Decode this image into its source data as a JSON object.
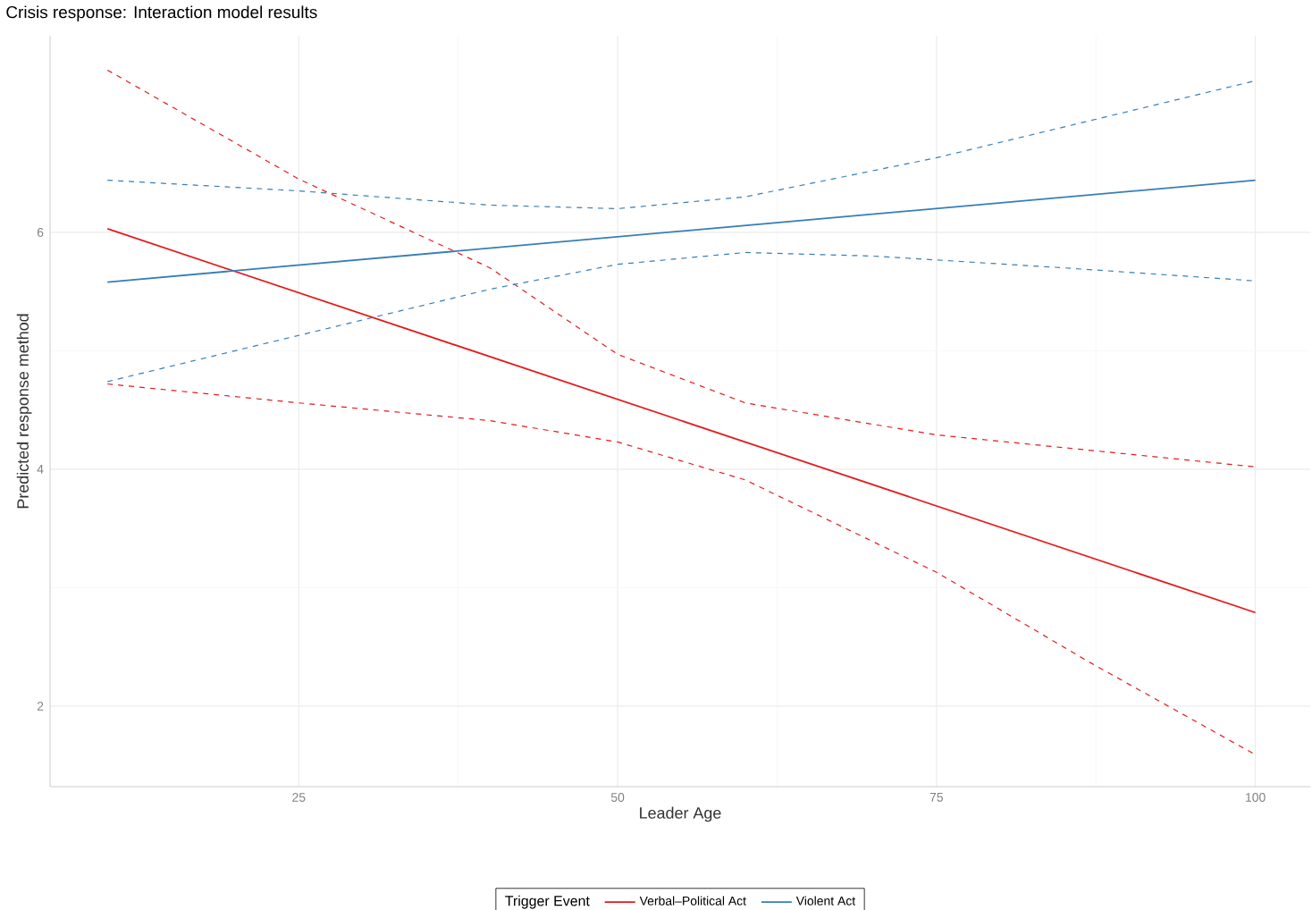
{
  "chart_data": {
    "type": "line",
    "title": "Crisis response: Interaction model results",
    "xlabel": "Leader Age",
    "ylabel": "Predicted response method",
    "legend_title": "Trigger Event",
    "xlim": [
      5.5,
      104.3
    ],
    "ylim": [
      1.32,
      7.66
    ],
    "xticks": [
      25,
      50,
      75,
      100
    ],
    "yticks": [
      2,
      4,
      6
    ],
    "grid": true,
    "legend": "bottom",
    "marker": "none",
    "series": [
      {
        "name": "Verbal–Political Act",
        "color": "#e41a1c",
        "line_style": "solid",
        "x": [
          10,
          100
        ],
        "values": [
          6.03,
          2.79
        ]
      },
      {
        "name": "Violent Act",
        "color": "#377eb8",
        "line_style": "solid",
        "x": [
          10,
          100
        ],
        "values": [
          5.58,
          6.44
        ]
      },
      {
        "color": "#e41a1c",
        "line_style": "dashed",
        "x": [
          10,
          25,
          40,
          50,
          60,
          75,
          100
        ],
        "values": [
          7.37,
          6.45,
          5.7,
          4.97,
          4.56,
          4.29,
          4.02
        ]
      },
      {
        "color": "#e41a1c",
        "line_style": "dashed",
        "x": [
          10,
          25,
          40,
          50,
          60,
          75,
          87,
          100
        ],
        "values": [
          4.72,
          4.56,
          4.41,
          4.23,
          3.91,
          3.13,
          2.37,
          1.59
        ]
      },
      {
        "color": "#377eb8",
        "line_style": "dashed",
        "x": [
          10,
          25,
          40,
          50,
          60,
          75,
          100
        ],
        "values": [
          6.44,
          6.35,
          6.23,
          6.2,
          6.3,
          6.63,
          7.28
        ]
      },
      {
        "color": "#377eb8",
        "line_style": "dashed",
        "x": [
          10,
          25,
          40,
          50,
          60,
          70,
          85,
          100
        ],
        "values": [
          4.74,
          5.13,
          5.52,
          5.73,
          5.83,
          5.8,
          5.7,
          5.59
        ]
      }
    ]
  }
}
